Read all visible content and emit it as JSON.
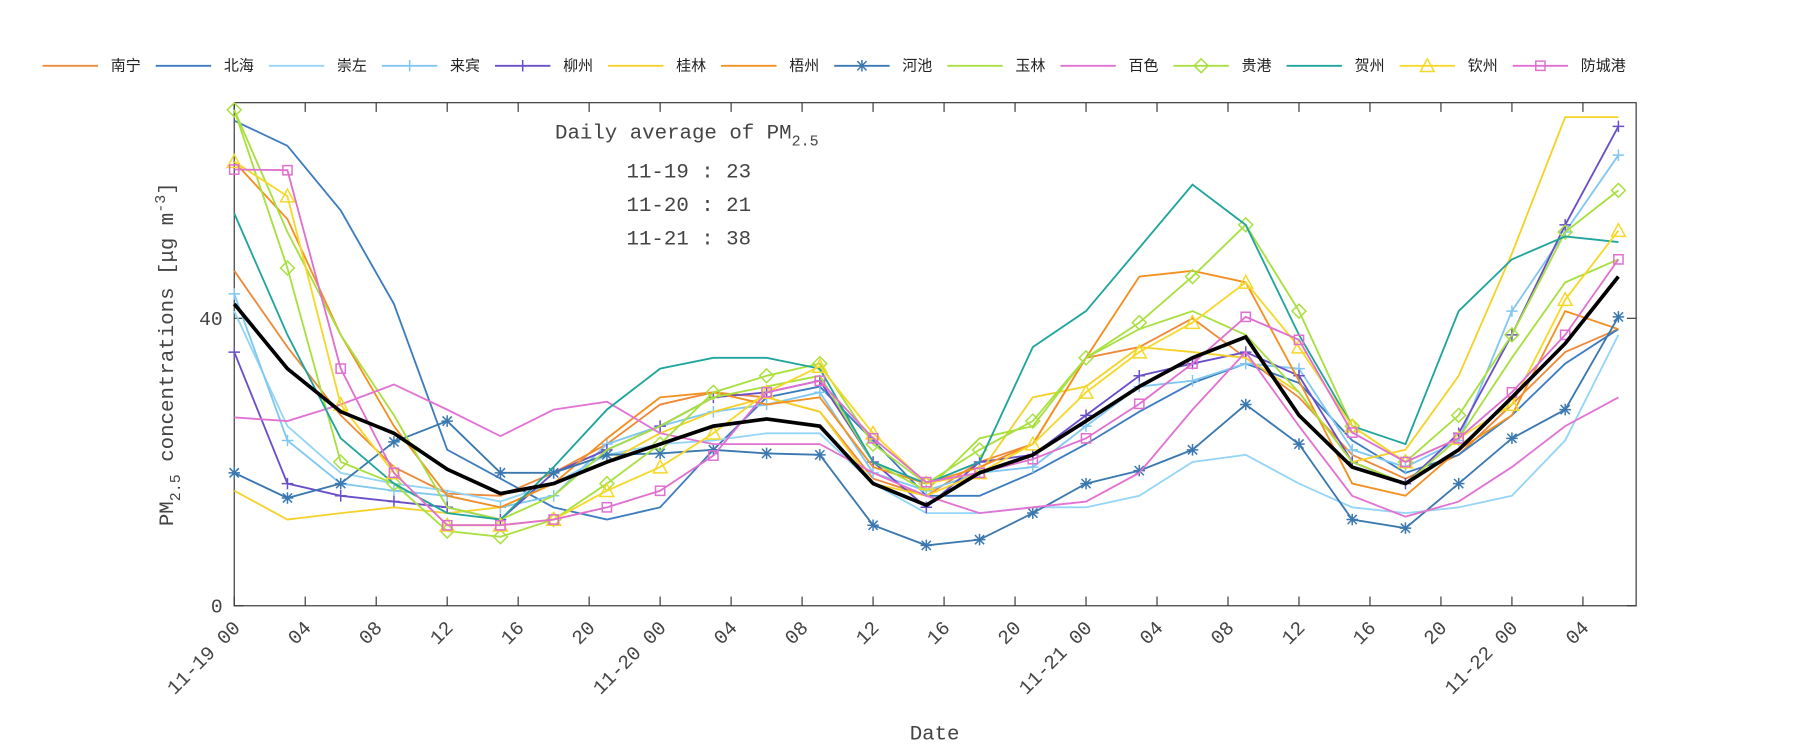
{
  "chart_data": {
    "type": "line",
    "annotation": {
      "prefix": "Daily average of PM",
      "subscript": "2.5",
      "lines": [
        "11-19 : 23",
        "11-20 : 21",
        "11-21 : 38"
      ]
    },
    "y_label": {
      "prefix": "PM",
      "subscript": "2.5",
      "middle": " concentrations [μg m",
      "superscript": "-3",
      "suffix": "]"
    },
    "x_label": "Date",
    "x": [
      0,
      3,
      6,
      9,
      12,
      15,
      18,
      21,
      24,
      27,
      30,
      33,
      36,
      39,
      42,
      45,
      48,
      51,
      54,
      57,
      60,
      63,
      66,
      69,
      72,
      75,
      78
    ],
    "xlim": [
      0,
      79
    ],
    "xticks": [
      {
        "value": 0,
        "label": "11-19 00"
      },
      {
        "value": 4,
        "label": "04"
      },
      {
        "value": 8,
        "label": "08"
      },
      {
        "value": 12,
        "label": "12"
      },
      {
        "value": 16,
        "label": "16"
      },
      {
        "value": 20,
        "label": "20"
      },
      {
        "value": 24,
        "label": "11-20 00"
      },
      {
        "value": 28,
        "label": "04"
      },
      {
        "value": 32,
        "label": "08"
      },
      {
        "value": 36,
        "label": "12"
      },
      {
        "value": 40,
        "label": "16"
      },
      {
        "value": 44,
        "label": "20"
      },
      {
        "value": 48,
        "label": "11-21 00"
      },
      {
        "value": 52,
        "label": "04"
      },
      {
        "value": 56,
        "label": "08"
      },
      {
        "value": 60,
        "label": "12"
      },
      {
        "value": 64,
        "label": "16"
      },
      {
        "value": 68,
        "label": "20"
      },
      {
        "value": 72,
        "label": "11-22 00"
      },
      {
        "value": 76,
        "label": "04"
      }
    ],
    "ylim": [
      0,
      70
    ],
    "yticks": [
      0,
      40
    ],
    "mean_line": {
      "color": "#000000",
      "values": [
        42,
        33,
        27,
        24,
        19,
        15.6,
        17,
        20,
        22.5,
        25,
        26,
        25,
        17,
        14,
        18.5,
        21,
        25.7,
        30.5,
        34.5,
        37.4,
        26.5,
        19.3,
        17,
        21.7,
        29,
        36.5,
        45.8
      ]
    },
    "series": [
      {
        "name": "南宁",
        "color": "#ee8a3a",
        "marker": null,
        "values": [
          46.6,
          36,
          26.5,
          19.3,
          15.6,
          15.3,
          18.5,
          22.5,
          28,
          29.7,
          29,
          27,
          17.7,
          15.3,
          20,
          22.5,
          34.5,
          36,
          40,
          34.5,
          29,
          21,
          17.7,
          21,
          28,
          35.3,
          38.5
        ]
      },
      {
        "name": "北海",
        "color": "#3d7dbf",
        "marker": null,
        "values": [
          67.5,
          64,
          55,
          42,
          21.7,
          17.7,
          13.7,
          12,
          13.7,
          21.7,
          29,
          30.5,
          23,
          15.3,
          15.3,
          18.5,
          22.5,
          27,
          31,
          33.7,
          31,
          23,
          18.5,
          21,
          26.5,
          33.7,
          38.5
        ]
      },
      {
        "name": "崇左",
        "color": "#95d5f5",
        "marker": null,
        "values": [
          41,
          25,
          18.5,
          17,
          16,
          14.5,
          17,
          21,
          22.5,
          23,
          24,
          24,
          17,
          12.9,
          12.9,
          13.7,
          13.7,
          15.3,
          20,
          21,
          17,
          13.7,
          12.9,
          13.7,
          15.3,
          23,
          37.7
        ]
      },
      {
        "name": "来宾",
        "color": "#80c8f0",
        "marker": "plus",
        "values": [
          43.4,
          23,
          17,
          16,
          15.3,
          13.7,
          15.3,
          22.5,
          25,
          27,
          28,
          29.7,
          18.5,
          16,
          18.5,
          19.3,
          25,
          30.5,
          31.3,
          33.7,
          33,
          21.7,
          19.3,
          23,
          41,
          52,
          62.7
        ]
      },
      {
        "name": "柳州",
        "color": "#6a4fc8",
        "marker": "plus",
        "values": [
          35.3,
          17,
          15.3,
          14.5,
          13.7,
          12,
          18.5,
          21.7,
          25,
          29,
          29.7,
          31.3,
          20,
          13.7,
          20,
          21,
          26.5,
          32,
          33.7,
          35.3,
          32,
          20,
          17,
          24,
          37.7,
          53,
          66.7
        ]
      },
      {
        "name": "桂林",
        "color": "#f5d22a",
        "marker": null,
        "values": [
          16,
          12,
          12.9,
          13.7,
          12.9,
          13.7,
          17,
          20,
          24,
          27,
          29,
          27,
          17,
          15.3,
          18.5,
          29,
          30.5,
          36,
          35.3,
          34.5,
          29.7,
          20,
          21.7,
          32,
          49,
          68,
          68
        ]
      },
      {
        "name": "梧州",
        "color": "#f39020",
        "marker": null,
        "values": [
          61.8,
          53.8,
          37.7,
          25,
          15.3,
          13.7,
          17,
          23.3,
          29,
          29.7,
          28,
          29,
          19.3,
          17,
          19.3,
          22.5,
          34.5,
          45.8,
          46.6,
          45,
          31.3,
          17,
          15.3,
          21.7,
          26.5,
          41,
          38.5
        ]
      },
      {
        "name": "河池",
        "color": "#3a78b0",
        "marker": "star",
        "values": [
          18.5,
          15,
          17,
          22.8,
          25.7,
          18.5,
          18.5,
          21,
          21.2,
          21.7,
          21.2,
          21,
          11.2,
          8.4,
          9.2,
          12.9,
          17,
          18.8,
          21.7,
          28,
          22.5,
          12,
          10.8,
          17,
          23.3,
          27.3,
          40.2
        ]
      },
      {
        "name": "玉林",
        "color": "#a8e040",
        "marker": null,
        "values": [
          69,
          52,
          37.7,
          26.5,
          13.7,
          12,
          15.3,
          21.7,
          25,
          29,
          30.5,
          32,
          20,
          16,
          23.3,
          25,
          34.5,
          38.5,
          41,
          37.7,
          29.7,
          20,
          17,
          23.3,
          34.5,
          45,
          48.2
        ]
      },
      {
        "name": "百色",
        "color": "#e272d4",
        "marker": null,
        "values": [
          26.2,
          25.7,
          28,
          30.8,
          27.3,
          23.6,
          27.3,
          28.4,
          24,
          22.5,
          22.5,
          22.5,
          18.5,
          15.3,
          12.9,
          13.7,
          14.5,
          18.5,
          27.3,
          35.3,
          25,
          15.3,
          12.4,
          14.5,
          19.3,
          25,
          29
        ]
      },
      {
        "name": "贵港",
        "color": "#a8e040",
        "marker": "diamond",
        "values": [
          69,
          47,
          20,
          17,
          10.4,
          9.6,
          12,
          17,
          22.5,
          29.7,
          32,
          33.7,
          22.5,
          17,
          21.7,
          25.7,
          34.5,
          39.4,
          45.8,
          53,
          41,
          25,
          20,
          26.5,
          37.7,
          52,
          57.8
        ]
      },
      {
        "name": "贺州",
        "color": "#20a59c",
        "marker": null,
        "values": [
          54.6,
          37.7,
          23.3,
          17,
          12.9,
          12,
          19.3,
          27.3,
          33,
          34.5,
          34.5,
          33,
          20,
          17,
          20,
          36,
          41,
          49.8,
          58.6,
          53,
          37.7,
          25,
          22.5,
          41,
          48.2,
          51.4,
          50.6
        ]
      },
      {
        "name": "钦州",
        "color": "#f5d828",
        "marker": "triangle",
        "values": [
          61.8,
          57,
          28,
          18.5,
          11.2,
          11.2,
          12,
          16,
          19.3,
          24,
          29.7,
          33.3,
          24,
          17,
          18.5,
          22.5,
          29.7,
          35.3,
          39.4,
          45,
          36,
          25,
          20,
          23.3,
          28,
          42.6,
          52.2
        ]
      },
      {
        "name": "防城港",
        "color": "#e070d0",
        "marker": "square",
        "values": [
          60.7,
          60.6,
          33,
          18.5,
          11.2,
          11.2,
          12,
          13.7,
          16,
          20.9,
          29.7,
          31.3,
          23.3,
          17.2,
          18.5,
          20.4,
          23.3,
          28.1,
          33.7,
          40.2,
          37,
          24.1,
          20,
          23.3,
          29.7,
          37.7,
          48.2
        ]
      }
    ]
  }
}
